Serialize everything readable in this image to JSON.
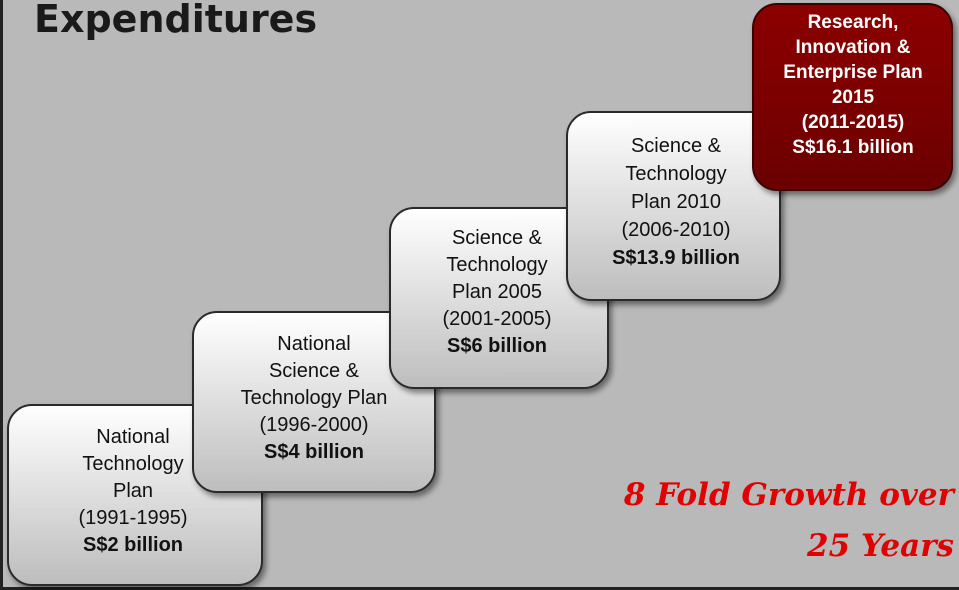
{
  "title": "Expenditures",
  "steps": [
    {
      "label": [
        "National",
        "Technology",
        "Plan"
      ],
      "period": "(1991-1995)",
      "amount": "S$2 billion"
    },
    {
      "label": [
        "National",
        "Science &",
        "Technology Plan"
      ],
      "period": "(1996-2000)",
      "amount": "S$4 billion"
    },
    {
      "label": [
        "Science &",
        "Technology",
        "Plan 2005"
      ],
      "period": "(2001-2005)",
      "amount": "S$6 billion"
    },
    {
      "label": [
        "Science &",
        "Technology",
        "Plan 2010"
      ],
      "period": "(2006-2010)",
      "amount": "S$13.9 billion"
    },
    {
      "label": [
        "Research,",
        "Innovation &",
        "Enterprise Plan",
        "2015"
      ],
      "period": "(2011-2015)",
      "amount": "S$16.1 billion"
    }
  ],
  "tagline": [
    "8 Fold Growth over",
    "25 Years"
  ]
}
